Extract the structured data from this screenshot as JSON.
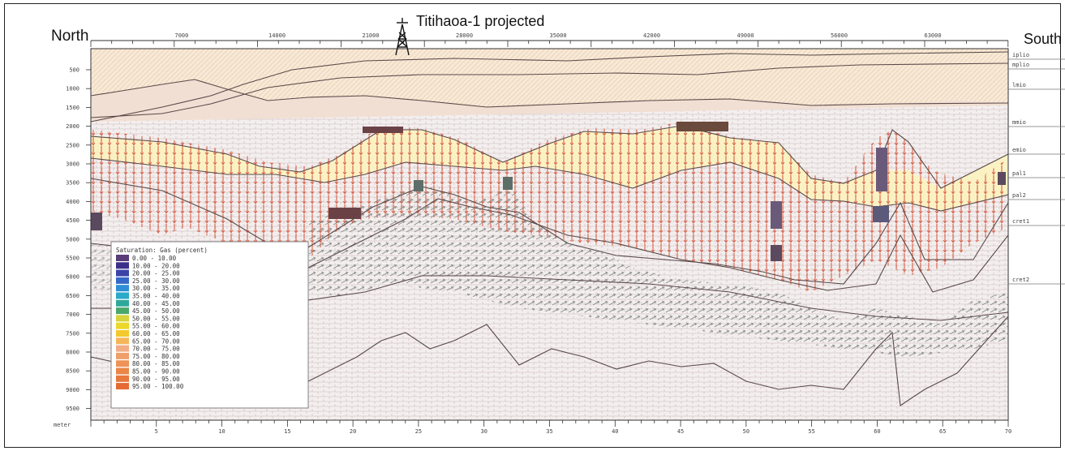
{
  "labels": {
    "north": "North",
    "south": "South",
    "well": "Titihaoa-1 projected"
  },
  "top_axis_ticks": [
    "7000",
    "14000",
    "21000",
    "28000",
    "35000",
    "42000",
    "49000",
    "56000",
    "63000"
  ],
  "depth_ticks": [
    "500",
    "1000",
    "1500",
    "2000",
    "2500",
    "3000",
    "3500",
    "4000",
    "4500",
    "5000",
    "5500",
    "6000",
    "6500",
    "7000",
    "7500",
    "8000",
    "8500",
    "9000",
    "9500"
  ],
  "bottom_axis_ticks": [
    "5",
    "10",
    "15",
    "20",
    "25",
    "30",
    "35",
    "40",
    "45",
    "50",
    "55",
    "60",
    "65",
    "70"
  ],
  "layers": [
    "iplio",
    "mplio",
    "lmio",
    "mmio",
    "emio",
    "pal1",
    "pal2",
    "cret1",
    "cret2"
  ],
  "legend": {
    "title": "Saturation: Gas (percent)",
    "entries": [
      {
        "range": "0.00 - 10.00",
        "color": "#5a3c78"
      },
      {
        "range": "10.00 - 20.00",
        "color": "#3c2f8a"
      },
      {
        "range": "20.00 - 25.00",
        "color": "#3b43a8"
      },
      {
        "range": "25.00 - 30.00",
        "color": "#3569c9"
      },
      {
        "range": "30.00 - 35.00",
        "color": "#2e8fd6"
      },
      {
        "range": "35.00 - 40.00",
        "color": "#2aa9c8"
      },
      {
        "range": "40.00 - 45.00",
        "color": "#2ea89a"
      },
      {
        "range": "45.00 - 50.00",
        "color": "#4aa86a"
      },
      {
        "range": "50.00 - 55.00",
        "color": "#d7d33b"
      },
      {
        "range": "55.00 - 60.00",
        "color": "#ecd72a"
      },
      {
        "range": "60.00 - 65.00",
        "color": "#f4c92c"
      },
      {
        "range": "65.00 - 70.00",
        "color": "#f5b65a"
      },
      {
        "range": "70.00 - 75.00",
        "color": "#f2ad84"
      },
      {
        "range": "75.00 - 80.00",
        "color": "#efa06a"
      },
      {
        "range": "80.00 - 85.00",
        "color": "#ed9358"
      },
      {
        "range": "85.00 - 90.00",
        "color": "#ea8648"
      },
      {
        "range": "90.00 - 95.00",
        "color": "#e8783c"
      },
      {
        "range": "95.00 - 100.00",
        "color": "#e66a33"
      }
    ]
  }
}
